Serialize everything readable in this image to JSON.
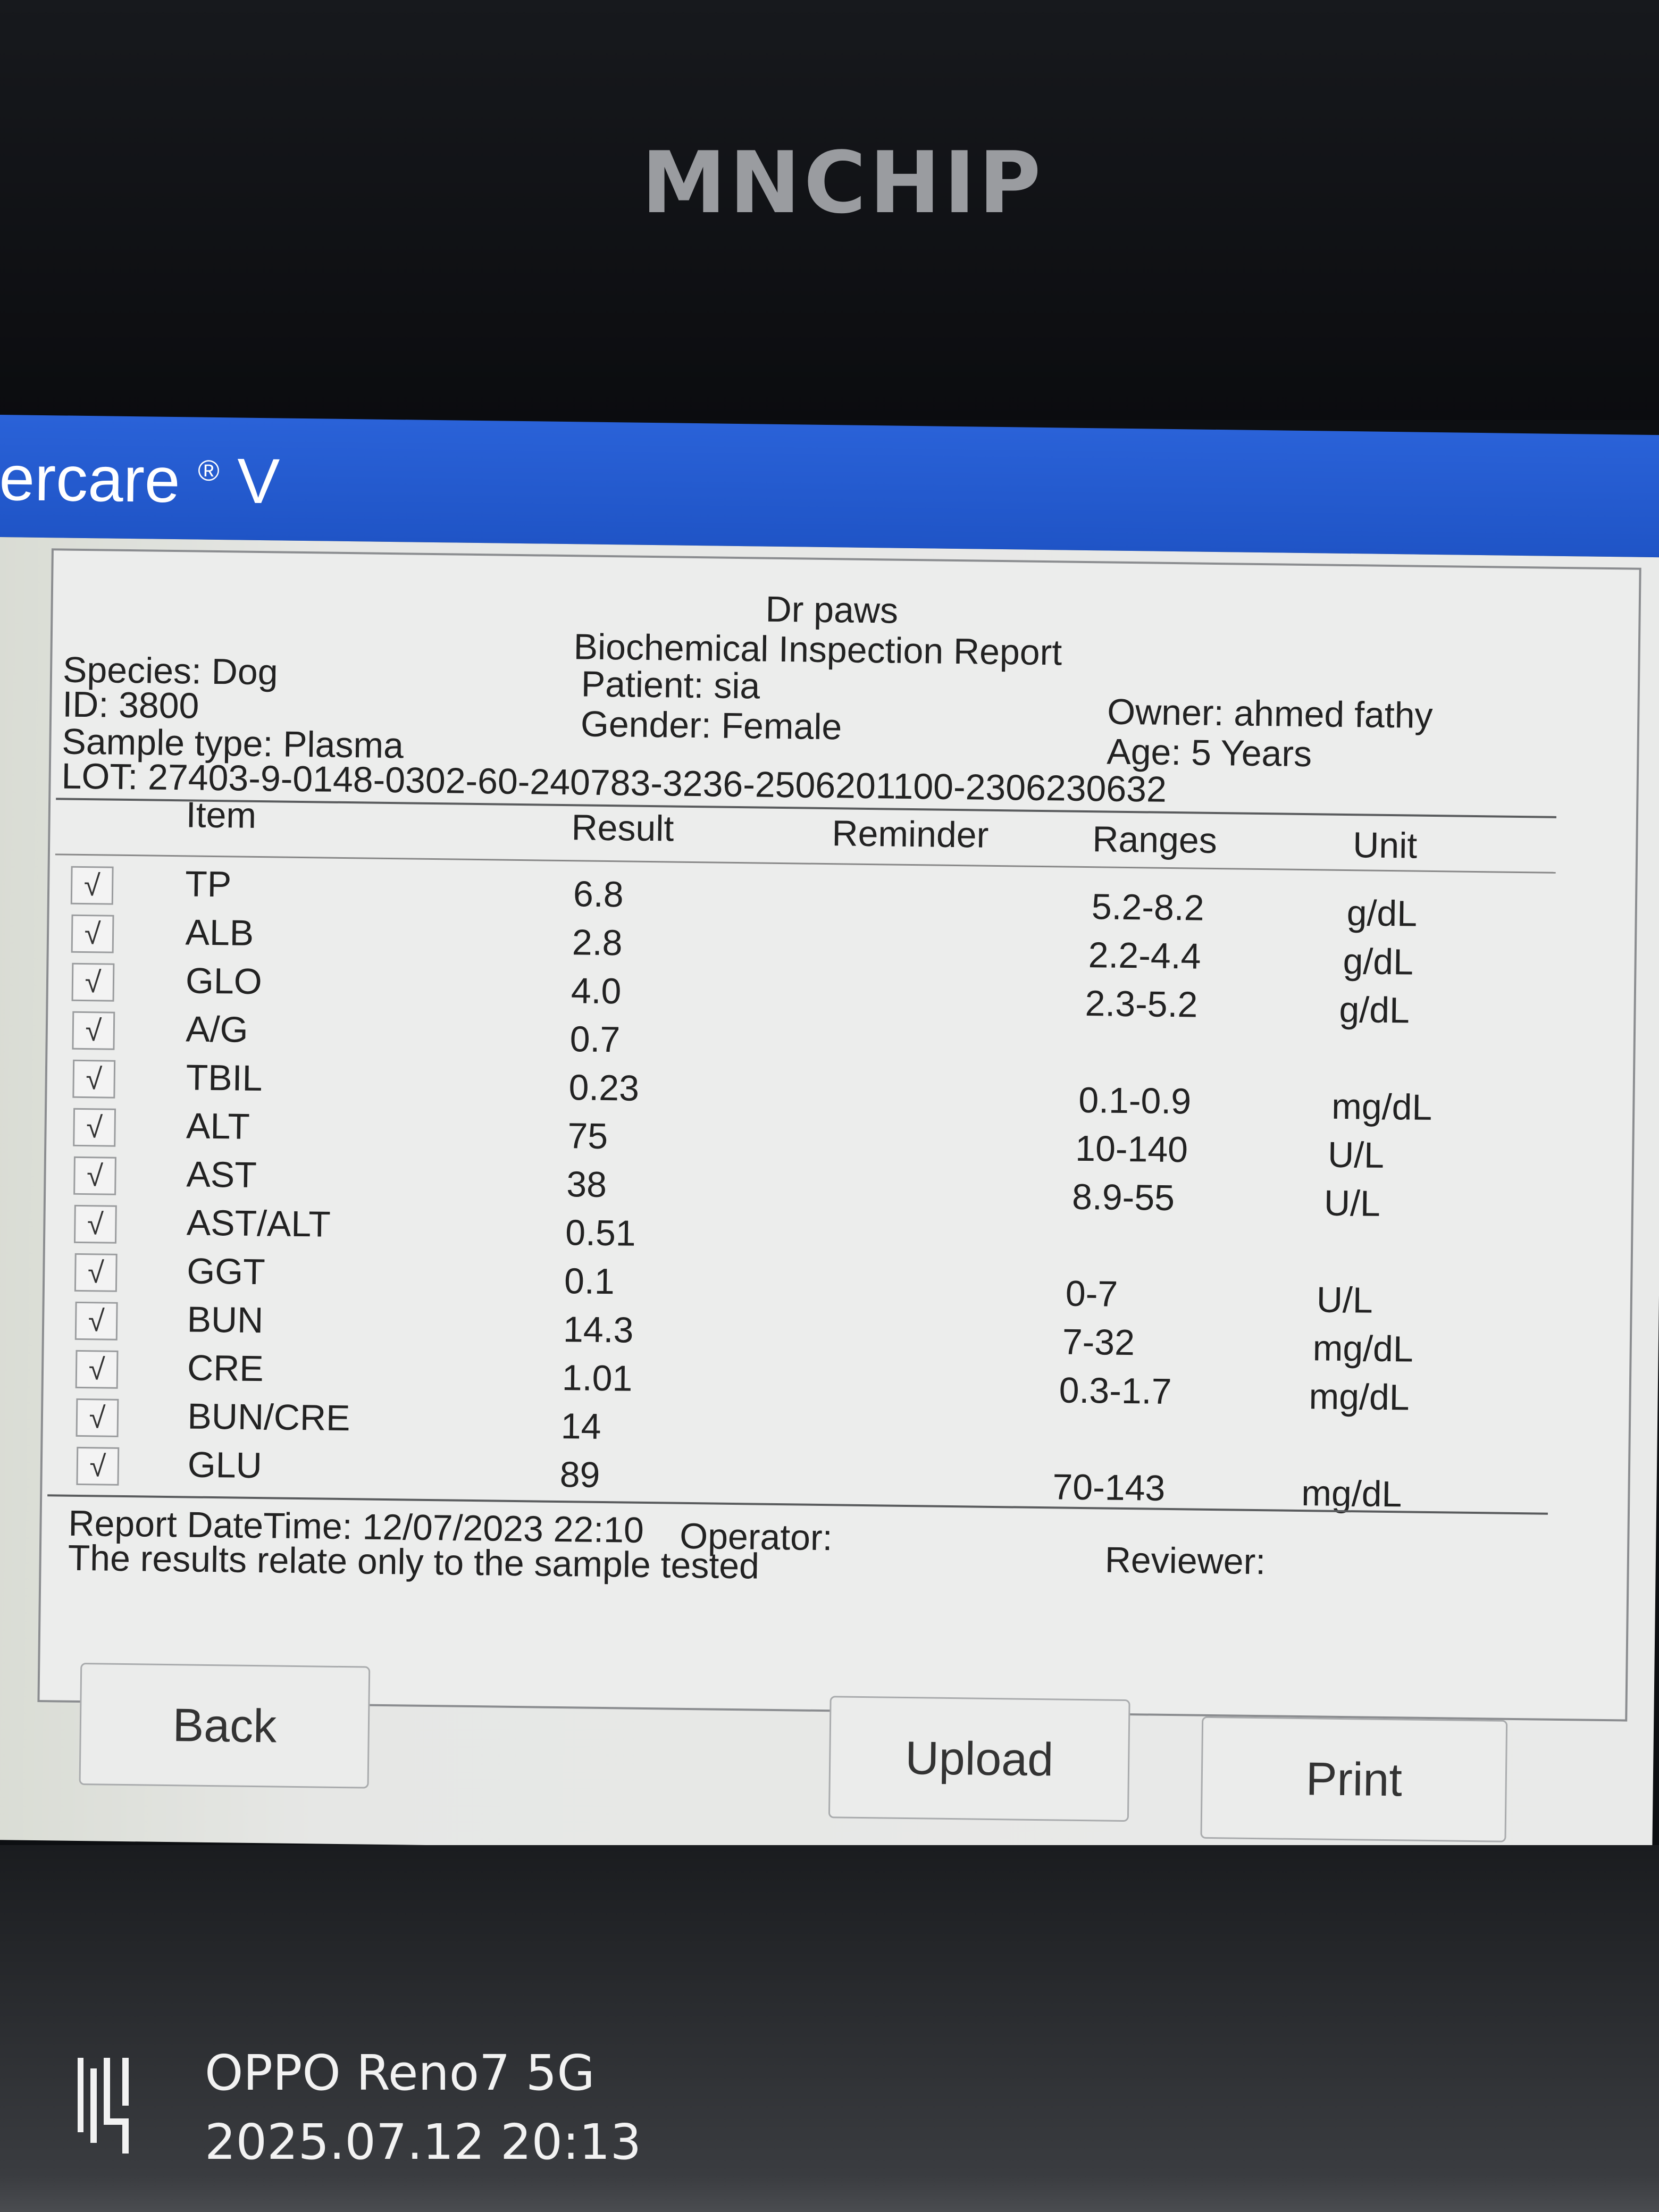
{
  "device": {
    "brand": "MNCHIP"
  },
  "app": {
    "title": "ercare",
    "title_mark": "®",
    "title_suffix": "V"
  },
  "report": {
    "clinic": "Dr paws",
    "title": "Biochemical Inspection Report",
    "species": "Species: Dog",
    "id": "ID: 3800",
    "sample_type": "Sample type: Plasma",
    "patient": "Patient: sia",
    "gender": "Gender: Female",
    "owner": "Owner: ahmed fathy",
    "age": "Age: 5 Years",
    "lot": "LOT:  27403-9-0148-0302-60-240783-3236-2506201100-2306230632",
    "columns": {
      "item": "Item",
      "result": "Result",
      "reminder": "Reminder",
      "ranges": "Ranges",
      "unit": "Unit"
    },
    "rows": [
      {
        "checked": "√",
        "item": "TP",
        "result": "6.8",
        "range": "5.2-8.2",
        "unit": "g/dL"
      },
      {
        "checked": "√",
        "item": "ALB",
        "result": "2.8",
        "range": "2.2-4.4",
        "unit": "g/dL"
      },
      {
        "checked": "√",
        "item": "GLO",
        "result": "4.0",
        "range": "2.3-5.2",
        "unit": "g/dL"
      },
      {
        "checked": "√",
        "item": "A/G",
        "result": "0.7",
        "range": "",
        "unit": ""
      },
      {
        "checked": "√",
        "item": "TBIL",
        "result": "0.23",
        "range": "0.1-0.9",
        "unit": "mg/dL"
      },
      {
        "checked": "√",
        "item": "ALT",
        "result": "75",
        "range": "10-140",
        "unit": "U/L"
      },
      {
        "checked": "√",
        "item": "AST",
        "result": "38",
        "range": "8.9-55",
        "unit": "U/L"
      },
      {
        "checked": "√",
        "item": "AST/ALT",
        "result": "0.51",
        "range": "",
        "unit": ""
      },
      {
        "checked": "√",
        "item": "GGT",
        "result": "0.1",
        "range": "0-7",
        "unit": "U/L"
      },
      {
        "checked": "√",
        "item": "BUN",
        "result": "14.3",
        "range": "7-32",
        "unit": "mg/dL"
      },
      {
        "checked": "√",
        "item": "CRE",
        "result": "1.01",
        "range": "0.3-1.7",
        "unit": "mg/dL"
      },
      {
        "checked": "√",
        "item": "BUN/CRE",
        "result": "14",
        "range": "",
        "unit": ""
      },
      {
        "checked": "√",
        "item": "GLU",
        "result": "89",
        "range": "70-143",
        "unit": "mg/dL"
      }
    ],
    "datetime": "Report DateTime: 12/07/2023 22:10",
    "operator": "Operator:",
    "reviewer": "Reviewer:",
    "disclaimer": "The results relate only to the sample tested"
  },
  "buttons": {
    "back": "Back",
    "upload": "Upload",
    "print": "Print"
  },
  "watermark": {
    "model": "OPPO Reno7 5G",
    "datetime": "2025.07.12 20:13"
  },
  "colors": {
    "titlebar": "#1f54c6",
    "panel": "#ecedec"
  }
}
